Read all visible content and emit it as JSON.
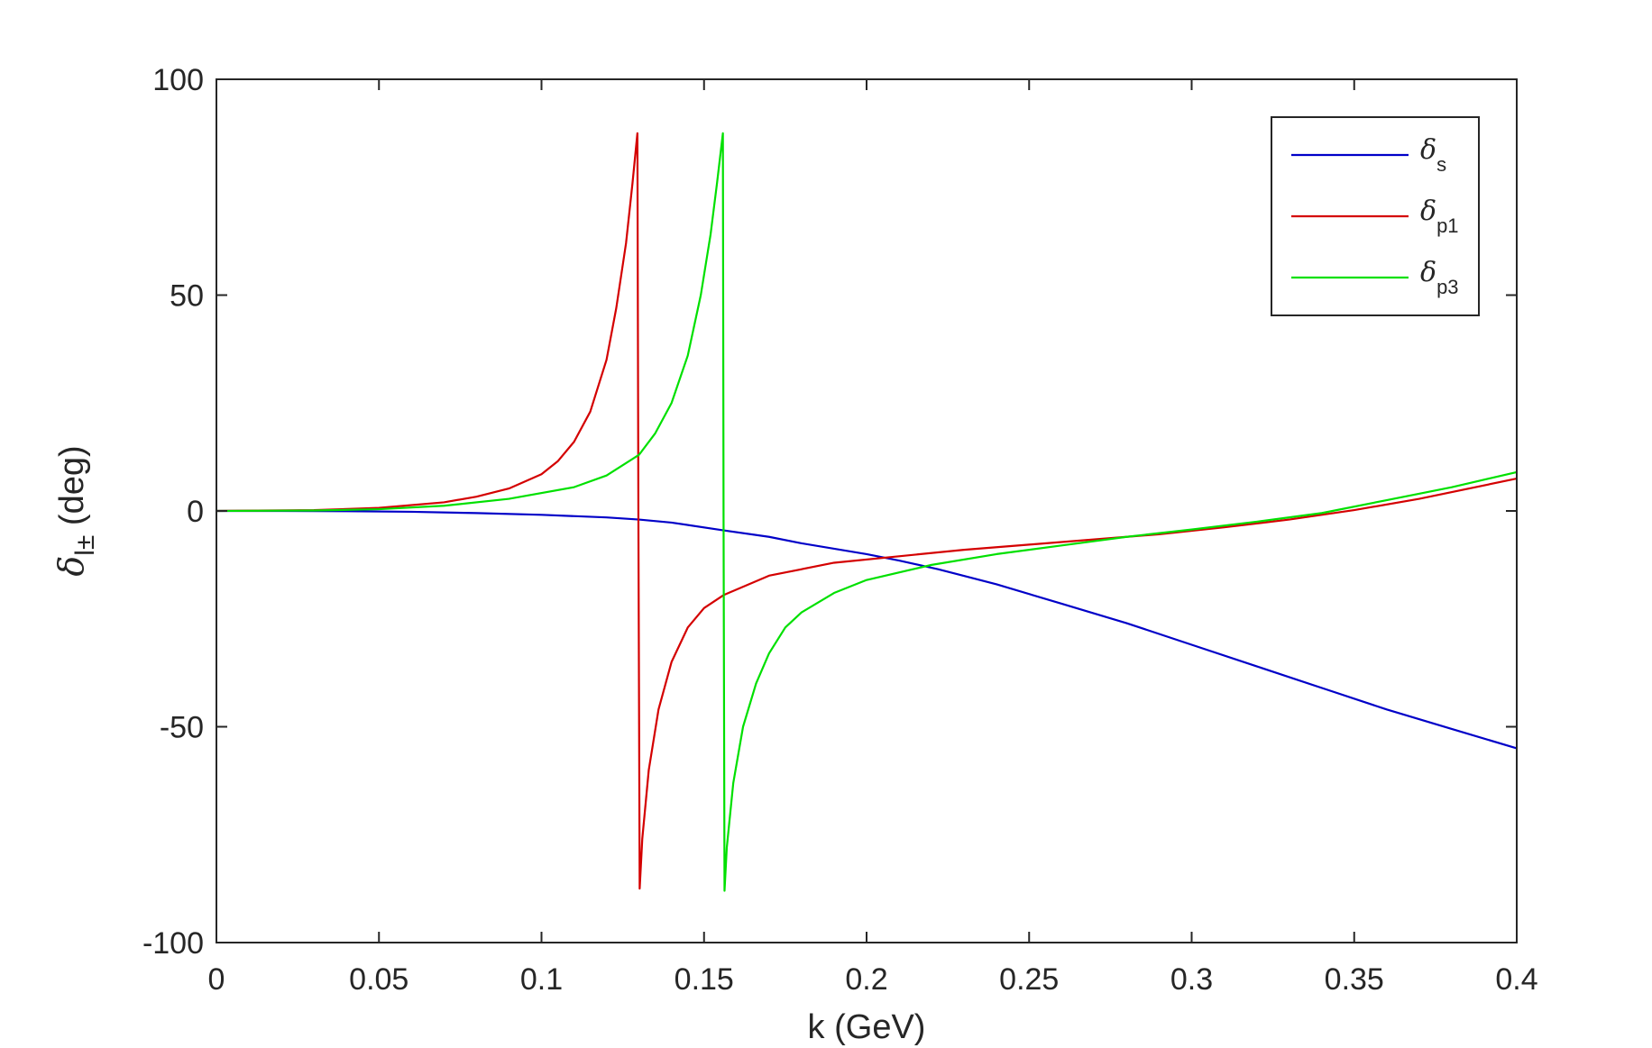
{
  "chart_data": {
    "type": "line",
    "xlabel": "k (GeV)",
    "ylabel": {
      "symbol": "δ",
      "subscript": "l±",
      "suffix": " (deg)"
    },
    "xlim": [
      0,
      0.4
    ],
    "ylim": [
      -100,
      100
    ],
    "xticks": [
      0,
      0.05,
      0.1,
      0.15,
      0.2,
      0.25,
      0.3,
      0.35,
      0.4
    ],
    "xtick_labels": [
      "0",
      "0.05",
      "0.1",
      "0.15",
      "0.2",
      "0.25",
      "0.3",
      "0.35",
      "0.4"
    ],
    "yticks": [
      -100,
      -50,
      0,
      50,
      100
    ],
    "ytick_labels": [
      "-100",
      "-50",
      "0",
      "50",
      "100"
    ],
    "grid": false,
    "legend_position": "top-right",
    "series": [
      {
        "name": "δs",
        "symbol": "δ",
        "subscript": "s",
        "color": "#0000c8",
        "x": [
          0,
          0.02,
          0.04,
          0.06,
          0.08,
          0.1,
          0.12,
          0.13,
          0.14,
          0.156,
          0.17,
          0.18,
          0.2,
          0.21,
          0.222,
          0.24,
          0.26,
          0.28,
          0.3,
          0.32,
          0.34,
          0.36,
          0.38,
          0.4
        ],
        "y": [
          0,
          0,
          -0.05,
          -0.2,
          -0.5,
          -0.9,
          -1.5,
          -2,
          -2.7,
          -4.5,
          -6,
          -7.5,
          -10,
          -11.5,
          -13.5,
          -17,
          -21.5,
          -26,
          -31,
          -36,
          -41,
          -46,
          -50.5,
          -55
        ]
      },
      {
        "name": "δp1",
        "symbol": "δ",
        "subscript": "p1",
        "color": "#d40000",
        "x": [
          0,
          0.03,
          0.05,
          0.07,
          0.08,
          0.09,
          0.1,
          0.105,
          0.11,
          0.115,
          0.12,
          0.123,
          0.126,
          0.128,
          0.1295,
          0.1298,
          0.1302,
          0.131,
          0.133,
          0.136,
          0.14,
          0.145,
          0.15,
          0.156,
          0.17,
          0.19,
          0.21,
          0.23,
          0.25,
          0.27,
          0.29,
          0.31,
          0.33,
          0.35,
          0.37,
          0.4
        ],
        "y": [
          0,
          0.2,
          0.7,
          2,
          3.3,
          5.2,
          8.5,
          11.5,
          16,
          23,
          35,
          47,
          62,
          76,
          87.5,
          0,
          -87.5,
          -76,
          -60,
          -46,
          -35,
          -27,
          -22.5,
          -19.5,
          -15,
          -12,
          -10.5,
          -9,
          -7.8,
          -6.6,
          -5.4,
          -3.8,
          -2,
          0.2,
          2.8,
          7.5
        ]
      },
      {
        "name": "δp3",
        "symbol": "δ",
        "subscript": "p3",
        "color": "#00e000",
        "x": [
          0,
          0.03,
          0.05,
          0.07,
          0.09,
          0.11,
          0.12,
          0.13,
          0.135,
          0.14,
          0.145,
          0.149,
          0.152,
          0.154,
          0.1558,
          0.156,
          0.1563,
          0.157,
          0.159,
          0.162,
          0.166,
          0.17,
          0.175,
          0.18,
          0.19,
          0.2,
          0.22,
          0.24,
          0.26,
          0.28,
          0.3,
          0.32,
          0.34,
          0.36,
          0.38,
          0.4
        ],
        "y": [
          0,
          0.1,
          0.4,
          1.2,
          2.8,
          5.5,
          8.2,
          13,
          18,
          25,
          36,
          50,
          64,
          76,
          87.5,
          0,
          -88,
          -78,
          -63,
          -50,
          -40,
          -33,
          -27,
          -23.5,
          -19,
          -16,
          -12.5,
          -10,
          -8,
          -6,
          -4.3,
          -2.5,
          -0.5,
          2.5,
          5.5,
          9
        ]
      }
    ]
  }
}
